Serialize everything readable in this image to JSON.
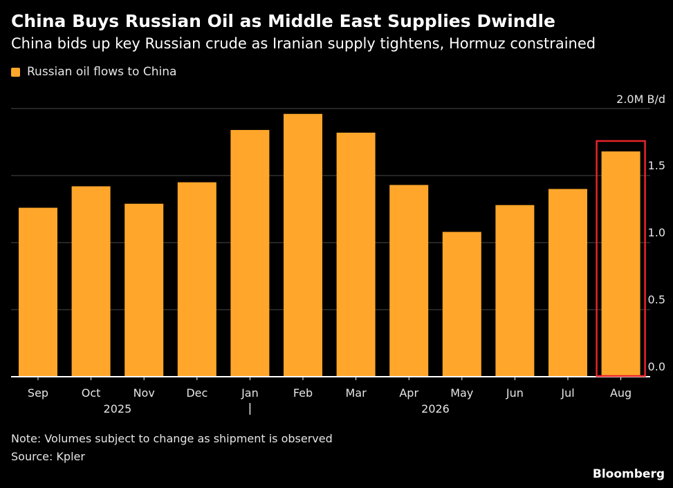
{
  "header": {
    "title": "China Buys Russian Oil as Middle East Supplies Dwindle",
    "subtitle": "China bids up key Russian crude as Iranian supply tightens, Hormuz constrained"
  },
  "footer": {
    "note": "Note: Volumes subject to change as shipment is observed",
    "source": "Source: Kpler",
    "brand": "Bloomberg"
  },
  "colors": {
    "bar": "#FFA62B",
    "highlight": "#E8232A",
    "grid": "#4a4a4a",
    "text": "#e6e6e6"
  },
  "chart_data": {
    "type": "bar",
    "title": "China Buys Russian Oil as Middle East Supplies Dwindle",
    "subtitle": "China bids up key Russian crude as Iranian supply tightens, Hormuz constrained",
    "categories": [
      "Sep",
      "Oct",
      "Nov",
      "Dec",
      "Jan",
      "Feb",
      "Mar",
      "Apr",
      "May",
      "Jun",
      "Jul",
      "Aug"
    ],
    "year_labels": [
      {
        "label": "2025",
        "start": 0,
        "end": 3
      },
      {
        "label": "2026",
        "start": 4,
        "end": 11
      }
    ],
    "series": [
      {
        "name": "Russian oil flows to China",
        "values": [
          1.26,
          1.42,
          1.29,
          1.45,
          1.84,
          1.96,
          1.82,
          1.43,
          1.08,
          1.28,
          1.4,
          1.68
        ]
      }
    ],
    "unit_label": "2.0M B/d",
    "yticks": [
      {
        "value": 0.0,
        "label": "0.0"
      },
      {
        "value": 0.5,
        "label": "0.5"
      },
      {
        "value": 1.0,
        "label": "1.0"
      },
      {
        "value": 1.5,
        "label": "1.5"
      },
      {
        "value": 2.0,
        "label": "2.0M B/d"
      }
    ],
    "ylim": [
      0,
      2.0
    ],
    "grid": true,
    "legend_position": "top-left",
    "highlight_index": 11
  }
}
